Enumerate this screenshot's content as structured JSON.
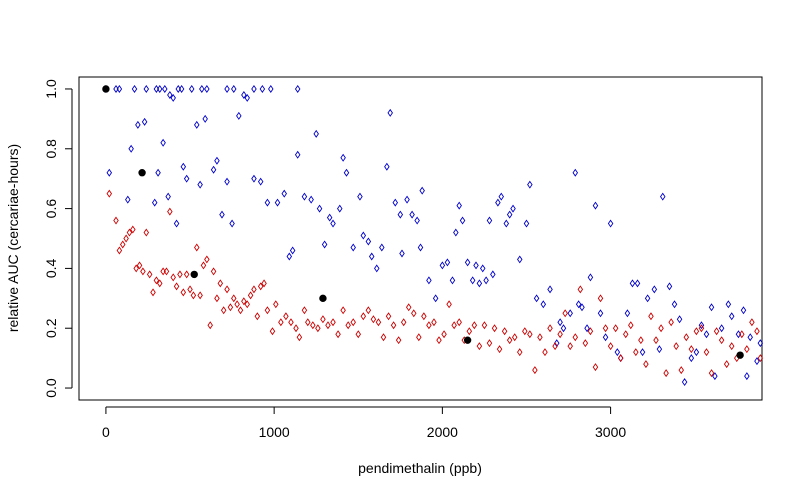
{
  "chart_data": {
    "type": "scatter",
    "title": "",
    "xlabel": "pendimethalin (ppb)",
    "ylabel": "relative AUC (cercariae-hours)",
    "xlim": [
      -160,
      3900
    ],
    "ylim": [
      -0.04,
      1.04
    ],
    "xticks": [
      0,
      1000,
      2000,
      3000
    ],
    "yticks": [
      0.0,
      0.2,
      0.4,
      0.6,
      0.8,
      1.0
    ],
    "xtick_labels": [
      "0",
      "1000",
      "2000",
      "3000"
    ],
    "ytick_labels": [
      "0.0",
      "0.2",
      "0.4",
      "0.6",
      "0.8",
      "1.0"
    ],
    "grid": false,
    "series": [
      {
        "color": "#0000cc",
        "marker": "open-diamond",
        "points": [
          [
            0,
            1.0
          ],
          [
            60,
            1.0
          ],
          [
            80,
            1.0
          ],
          [
            170,
            1.0
          ],
          [
            240,
            1.0
          ],
          [
            300,
            1.0
          ],
          [
            320,
            1.0
          ],
          [
            350,
            1.0
          ],
          [
            380,
            0.98
          ],
          [
            400,
            0.97
          ],
          [
            430,
            1.0
          ],
          [
            450,
            1.0
          ],
          [
            510,
            1.0
          ],
          [
            570,
            1.0
          ],
          [
            600,
            1.0
          ],
          [
            720,
            1.0
          ],
          [
            760,
            1.0
          ],
          [
            820,
            0.98
          ],
          [
            840,
            0.97
          ],
          [
            880,
            1.0
          ],
          [
            930,
            1.0
          ],
          [
            980,
            1.0
          ],
          [
            1140,
            1.0
          ],
          [
            20,
            0.72
          ],
          [
            130,
            0.63
          ],
          [
            150,
            0.8
          ],
          [
            190,
            0.88
          ],
          [
            230,
            0.89
          ],
          [
            290,
            0.62
          ],
          [
            310,
            0.72
          ],
          [
            340,
            0.82
          ],
          [
            370,
            0.64
          ],
          [
            420,
            0.55
          ],
          [
            460,
            0.74
          ],
          [
            480,
            0.7
          ],
          [
            540,
            0.88
          ],
          [
            560,
            0.68
          ],
          [
            590,
            0.9
          ],
          [
            640,
            0.73
          ],
          [
            660,
            0.76
          ],
          [
            690,
            0.58
          ],
          [
            720,
            0.69
          ],
          [
            750,
            0.55
          ],
          [
            790,
            0.91
          ],
          [
            880,
            0.7
          ],
          [
            920,
            0.69
          ],
          [
            960,
            0.62
          ],
          [
            1020,
            0.62
          ],
          [
            1060,
            0.65
          ],
          [
            1090,
            0.44
          ],
          [
            1110,
            0.46
          ],
          [
            1140,
            0.78
          ],
          [
            1180,
            0.64
          ],
          [
            1220,
            0.63
          ],
          [
            1250,
            0.85
          ],
          [
            1270,
            0.6
          ],
          [
            1300,
            0.48
          ],
          [
            1330,
            0.57
          ],
          [
            1350,
            0.55
          ],
          [
            1390,
            0.6
          ],
          [
            1410,
            0.77
          ],
          [
            1430,
            0.72
          ],
          [
            1470,
            0.47
          ],
          [
            1510,
            0.64
          ],
          [
            1530,
            0.51
          ],
          [
            1560,
            0.49
          ],
          [
            1580,
            0.44
          ],
          [
            1610,
            0.4
          ],
          [
            1640,
            0.47
          ],
          [
            1670,
            0.74
          ],
          [
            1690,
            0.92
          ],
          [
            1720,
            0.62
          ],
          [
            1750,
            0.58
          ],
          [
            1760,
            0.45
          ],
          [
            1790,
            0.63
          ],
          [
            1820,
            0.58
          ],
          [
            1850,
            0.56
          ],
          [
            1870,
            0.47
          ],
          [
            1880,
            0.66
          ],
          [
            1920,
            0.36
          ],
          [
            1960,
            0.3
          ],
          [
            2000,
            0.41
          ],
          [
            2030,
            0.42
          ],
          [
            2060,
            0.36
          ],
          [
            2080,
            0.52
          ],
          [
            2100,
            0.61
          ],
          [
            2120,
            0.56
          ],
          [
            2150,
            0.42
          ],
          [
            2180,
            0.36
          ],
          [
            2200,
            0.41
          ],
          [
            2220,
            0.35
          ],
          [
            2240,
            0.4
          ],
          [
            2260,
            0.36
          ],
          [
            2280,
            0.56
          ],
          [
            2300,
            0.38
          ],
          [
            2330,
            0.62
          ],
          [
            2350,
            0.64
          ],
          [
            2380,
            0.55
          ],
          [
            2400,
            0.58
          ],
          [
            2420,
            0.6
          ],
          [
            2460,
            0.43
          ],
          [
            2500,
            0.55
          ],
          [
            2520,
            0.68
          ],
          [
            2560,
            0.3
          ],
          [
            2600,
            0.28
          ],
          [
            2640,
            0.33
          ],
          [
            2680,
            0.15
          ],
          [
            2700,
            0.22
          ],
          [
            2720,
            0.2
          ],
          [
            2760,
            0.25
          ],
          [
            2790,
            0.72
          ],
          [
            2810,
            0.28
          ],
          [
            2830,
            0.27
          ],
          [
            2860,
            0.2
          ],
          [
            2880,
            0.37
          ],
          [
            2910,
            0.61
          ],
          [
            2940,
            0.25
          ],
          [
            2970,
            0.17
          ],
          [
            3000,
            0.55
          ],
          [
            3040,
            0.12
          ],
          [
            3060,
            0.1
          ],
          [
            3100,
            0.25
          ],
          [
            3130,
            0.35
          ],
          [
            3160,
            0.35
          ],
          [
            3190,
            0.12
          ],
          [
            3220,
            0.3
          ],
          [
            3260,
            0.33
          ],
          [
            3290,
            0.13
          ],
          [
            3310,
            0.64
          ],
          [
            3350,
            0.34
          ],
          [
            3380,
            0.28
          ],
          [
            3410,
            0.23
          ],
          [
            3440,
            0.02
          ],
          [
            3480,
            0.1
          ],
          [
            3510,
            0.12
          ],
          [
            3540,
            0.21
          ],
          [
            3570,
            0.18
          ],
          [
            3600,
            0.27
          ],
          [
            3620,
            0.04
          ],
          [
            3660,
            0.2
          ],
          [
            3700,
            0.28
          ],
          [
            3720,
            0.24
          ],
          [
            3760,
            0.18
          ],
          [
            3790,
            0.26
          ],
          [
            3810,
            0.04
          ],
          [
            3830,
            0.17
          ],
          [
            3870,
            0.09
          ],
          [
            3890,
            0.15
          ]
        ]
      },
      {
        "color": "#cc0000",
        "marker": "open-diamond",
        "points": [
          [
            20,
            0.65
          ],
          [
            60,
            0.56
          ],
          [
            80,
            0.46
          ],
          [
            100,
            0.48
          ],
          [
            120,
            0.5
          ],
          [
            140,
            0.52
          ],
          [
            160,
            0.53
          ],
          [
            180,
            0.4
          ],
          [
            200,
            0.41
          ],
          [
            220,
            0.39
          ],
          [
            240,
            0.52
          ],
          [
            260,
            0.38
          ],
          [
            280,
            0.32
          ],
          [
            300,
            0.36
          ],
          [
            320,
            0.35
          ],
          [
            340,
            0.39
          ],
          [
            360,
            0.39
          ],
          [
            380,
            0.59
          ],
          [
            400,
            0.37
          ],
          [
            420,
            0.34
          ],
          [
            440,
            0.38
          ],
          [
            460,
            0.32
          ],
          [
            480,
            0.38
          ],
          [
            500,
            0.33
          ],
          [
            520,
            0.31
          ],
          [
            540,
            0.47
          ],
          [
            560,
            0.31
          ],
          [
            580,
            0.41
          ],
          [
            600,
            0.43
          ],
          [
            620,
            0.21
          ],
          [
            640,
            0.39
          ],
          [
            660,
            0.3
          ],
          [
            680,
            0.35
          ],
          [
            700,
            0.26
          ],
          [
            720,
            0.33
          ],
          [
            740,
            0.27
          ],
          [
            760,
            0.3
          ],
          [
            780,
            0.28
          ],
          [
            800,
            0.26
          ],
          [
            820,
            0.29
          ],
          [
            840,
            0.28
          ],
          [
            860,
            0.31
          ],
          [
            880,
            0.33
          ],
          [
            900,
            0.24
          ],
          [
            920,
            0.34
          ],
          [
            940,
            0.35
          ],
          [
            960,
            0.26
          ],
          [
            990,
            0.19
          ],
          [
            1010,
            0.28
          ],
          [
            1040,
            0.22
          ],
          [
            1070,
            0.24
          ],
          [
            1100,
            0.22
          ],
          [
            1130,
            0.2
          ],
          [
            1150,
            0.17
          ],
          [
            1180,
            0.26
          ],
          [
            1200,
            0.22
          ],
          [
            1230,
            0.21
          ],
          [
            1260,
            0.2
          ],
          [
            1290,
            0.23
          ],
          [
            1320,
            0.21
          ],
          [
            1350,
            0.22
          ],
          [
            1380,
            0.18
          ],
          [
            1410,
            0.26
          ],
          [
            1440,
            0.21
          ],
          [
            1470,
            0.22
          ],
          [
            1500,
            0.18
          ],
          [
            1530,
            0.24
          ],
          [
            1560,
            0.26
          ],
          [
            1590,
            0.23
          ],
          [
            1620,
            0.22
          ],
          [
            1650,
            0.17
          ],
          [
            1680,
            0.24
          ],
          [
            1710,
            0.21
          ],
          [
            1740,
            0.16
          ],
          [
            1770,
            0.22
          ],
          [
            1800,
            0.27
          ],
          [
            1830,
            0.25
          ],
          [
            1860,
            0.17
          ],
          [
            1890,
            0.24
          ],
          [
            1920,
            0.21
          ],
          [
            1950,
            0.22
          ],
          [
            1980,
            0.16
          ],
          [
            2010,
            0.18
          ],
          [
            2040,
            0.28
          ],
          [
            2070,
            0.21
          ],
          [
            2100,
            0.22
          ],
          [
            2130,
            0.16
          ],
          [
            2160,
            0.19
          ],
          [
            2190,
            0.21
          ],
          [
            2220,
            0.14
          ],
          [
            2250,
            0.21
          ],
          [
            2280,
            0.15
          ],
          [
            2310,
            0.2
          ],
          [
            2340,
            0.13
          ],
          [
            2370,
            0.19
          ],
          [
            2400,
            0.16
          ],
          [
            2430,
            0.17
          ],
          [
            2460,
            0.12
          ],
          [
            2490,
            0.19
          ],
          [
            2520,
            0.18
          ],
          [
            2550,
            0.06
          ],
          [
            2580,
            0.17
          ],
          [
            2610,
            0.12
          ],
          [
            2640,
            0.2
          ],
          [
            2670,
            0.14
          ],
          [
            2700,
            0.18
          ],
          [
            2730,
            0.25
          ],
          [
            2760,
            0.14
          ],
          [
            2790,
            0.17
          ],
          [
            2820,
            0.33
          ],
          [
            2850,
            0.15
          ],
          [
            2880,
            0.19
          ],
          [
            2910,
            0.07
          ],
          [
            2940,
            0.3
          ],
          [
            2970,
            0.2
          ],
          [
            3000,
            0.14
          ],
          [
            3030,
            0.2
          ],
          [
            3060,
            0.1
          ],
          [
            3090,
            0.18
          ],
          [
            3120,
            0.21
          ],
          [
            3150,
            0.12
          ],
          [
            3180,
            0.16
          ],
          [
            3210,
            0.08
          ],
          [
            3240,
            0.24
          ],
          [
            3270,
            0.16
          ],
          [
            3300,
            0.2
          ],
          [
            3330,
            0.05
          ],
          [
            3360,
            0.22
          ],
          [
            3390,
            0.14
          ],
          [
            3420,
            0.06
          ],
          [
            3450,
            0.17
          ],
          [
            3480,
            0.13
          ],
          [
            3510,
            0.19
          ],
          [
            3540,
            0.2
          ],
          [
            3570,
            0.12
          ],
          [
            3600,
            0.05
          ],
          [
            3630,
            0.19
          ],
          [
            3660,
            0.16
          ],
          [
            3690,
            0.08
          ],
          [
            3720,
            0.14
          ],
          [
            3750,
            0.1
          ],
          [
            3780,
            0.18
          ],
          [
            3810,
            0.13
          ],
          [
            3840,
            0.22
          ],
          [
            3870,
            0.19
          ],
          [
            3890,
            0.1
          ]
        ]
      },
      {
        "color": "#000000",
        "marker": "filled-circle",
        "points": [
          [
            0,
            1.0
          ],
          [
            215,
            0.72
          ],
          [
            525,
            0.38
          ],
          [
            1290,
            0.3
          ],
          [
            2150,
            0.16
          ],
          [
            3770,
            0.11
          ]
        ]
      }
    ]
  }
}
